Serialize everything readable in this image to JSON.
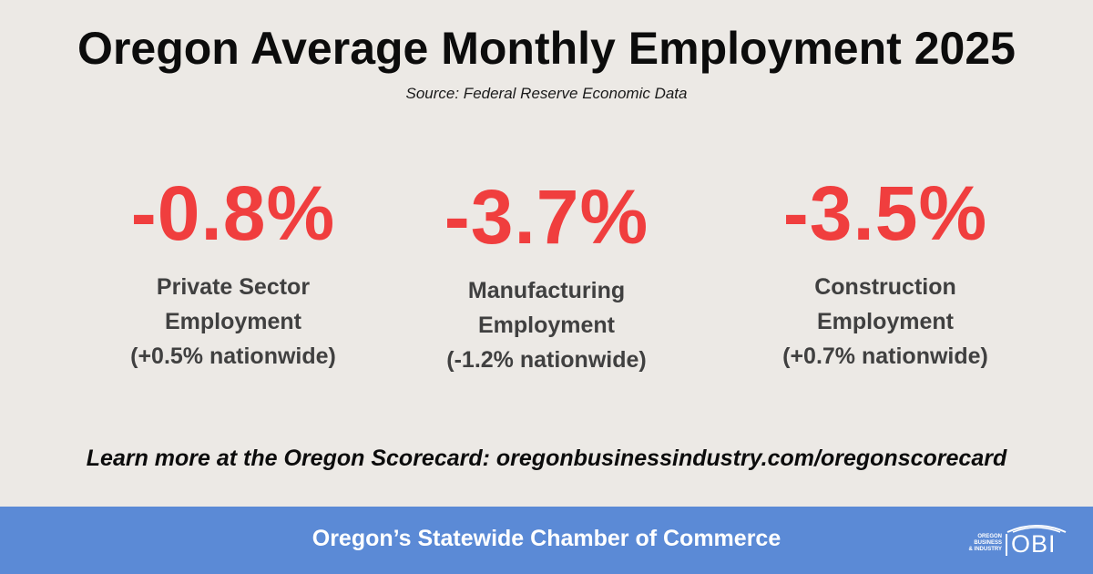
{
  "title": "Oregon Average Monthly Employment 2025",
  "source": "Source: Federal Reserve Economic Data",
  "stats": [
    {
      "value": "-0.8%",
      "label_lines": [
        "Private Sector",
        "Employment",
        "(+0.5% nationwide)"
      ]
    },
    {
      "value": "-3.7%",
      "label_lines": [
        "Manufacturing",
        "Employment",
        "(-1.2% nationwide)"
      ]
    },
    {
      "value": "-3.5%",
      "label_lines": [
        "Construction",
        "Employment",
        "(+0.7% nationwide)"
      ]
    }
  ],
  "learn_more": "Learn more at the Oregon Scorecard: oregonbusinessindustry.com/oregonscorecard",
  "footer": {
    "text": "Oregon’s Statewide Chamber of Commerce",
    "logo": {
      "small_lines": [
        "OREGON",
        "BUSINESS",
        "& INDUSTRY"
      ],
      "text": "OBI"
    }
  },
  "colors": {
    "background": "#ECE9E5",
    "stat_value": "#F03E3E",
    "label": "#404040",
    "footer_band": "#5B8AD6",
    "footer_text": "#FFFFFF"
  }
}
